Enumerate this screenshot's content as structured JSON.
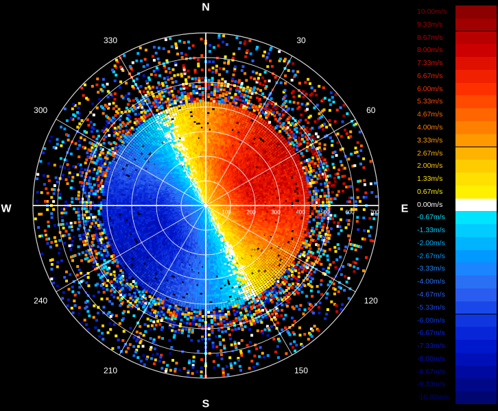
{
  "chart_data": {
    "type": "polar-radar-ppi",
    "title": "",
    "quantity_unit": "m/s",
    "cardinals": {
      "north": "N",
      "east": "E",
      "south": "S",
      "west": "W"
    },
    "azimuth_labels": [
      {
        "az": 30,
        "text": "30"
      },
      {
        "az": 60,
        "text": "60"
      },
      {
        "az": 120,
        "text": "120"
      },
      {
        "az": 150,
        "text": "150"
      },
      {
        "az": 210,
        "text": "210"
      },
      {
        "az": 240,
        "text": "240"
      },
      {
        "az": 300,
        "text": "300"
      },
      {
        "az": 330,
        "text": "330"
      }
    ],
    "range_rings": 7,
    "range_labels": [
      "100",
      "200",
      "300",
      "400",
      "500",
      "600",
      "700"
    ],
    "velocity_pattern": {
      "description_of_field": "positive (away, warm colors) toward east/north-east, negative (toward, cool colors) toward west/south-west",
      "center_velocity": 0.0
    },
    "colorbar": [
      {
        "label": "10.00m/s",
        "color": "#8b0000"
      },
      {
        "label": "9.33m/s",
        "color": "#a10000"
      },
      {
        "label": "8.67m/s",
        "color": "#b80000"
      },
      {
        "label": "8.00m/s",
        "color": "#cc0000"
      },
      {
        "label": "7.33m/s",
        "color": "#e01000"
      },
      {
        "label": "6.67m/s",
        "color": "#f02000"
      },
      {
        "label": "6.00m/s",
        "color": "#ff3000"
      },
      {
        "label": "5.33m/s",
        "color": "#ff4a00"
      },
      {
        "label": "4.67m/s",
        "color": "#ff6600"
      },
      {
        "label": "4.00m/s",
        "color": "#ff8000"
      },
      {
        "label": "3.33m/s",
        "color": "#ff9900"
      },
      {
        "label": "2.67m/s",
        "color": "#ffb300"
      },
      {
        "label": "2.00m/s",
        "color": "#ffcc00"
      },
      {
        "label": "1.33m/s",
        "color": "#ffe000"
      },
      {
        "label": "0.67m/s",
        "color": "#fff000"
      },
      {
        "label": "0.00m/s",
        "color": "#ffffff"
      },
      {
        "label": "-0.67m/s",
        "color": "#00e5ff"
      },
      {
        "label": "-1.33m/s",
        "color": "#00ccff"
      },
      {
        "label": "-2.00m/s",
        "color": "#00b3ff"
      },
      {
        "label": "-2.67m/s",
        "color": "#0099ff"
      },
      {
        "label": "-3.33m/s",
        "color": "#1a85ff"
      },
      {
        "label": "-4.00m/s",
        "color": "#2a70f5"
      },
      {
        "label": "-4.67m/s",
        "color": "#2a5cf0"
      },
      {
        "label": "-5.33m/s",
        "color": "#1a48e8"
      },
      {
        "label": "-6.00m/s",
        "color": "#1036e0"
      },
      {
        "label": "-6.67m/s",
        "color": "#0826d8"
      },
      {
        "label": "-7.33m/s",
        "color": "#0018cc"
      },
      {
        "label": "-8.00m/s",
        "color": "#0010b8"
      },
      {
        "label": "-8.67m/s",
        "color": "#000aa0"
      },
      {
        "label": "-9.33m/s",
        "color": "#000888"
      },
      {
        "label": "-10.00m/s",
        "color": "#000670"
      }
    ]
  }
}
